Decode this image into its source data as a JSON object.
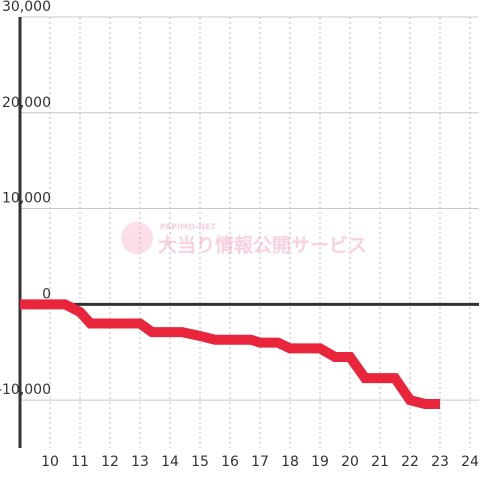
{
  "chart_data": {
    "type": "line",
    "x": [
      9,
      10.5,
      11,
      11.35,
      13,
      13.4,
      14.4,
      15,
      15.5,
      16.7,
      17,
      17.6,
      18,
      19,
      19.5,
      20,
      20.5,
      21.5,
      22,
      22.5,
      23
    ],
    "series": [
      {
        "color": "#e8253a",
        "values": [
          0,
          0,
          -800,
          -2000,
          -2000,
          -2900,
          -2900,
          -3300,
          -3700,
          -3700,
          -4000,
          -4000,
          -4600,
          -4600,
          -5500,
          -5500,
          -7700,
          -7700,
          -10000,
          -10400,
          -10400
        ]
      }
    ],
    "xlim": [
      9,
      24.3
    ],
    "xticks": [
      10,
      11,
      12,
      13,
      14,
      15,
      16,
      17,
      18,
      19,
      20,
      21,
      22,
      23,
      24
    ],
    "ylim": [
      -15000,
      30000
    ],
    "yticks": [
      {
        "value": -10000,
        "label": "-10,000"
      },
      0,
      {
        "value": 10000,
        "label": "10,000"
      },
      {
        "value": 20000,
        "label": "20,000"
      },
      {
        "value": 30000,
        "label": "30,000"
      }
    ],
    "grid": true,
    "annotations": [
      "PAPIMO-NET",
      "大当り情報公開サービス"
    ]
  }
}
